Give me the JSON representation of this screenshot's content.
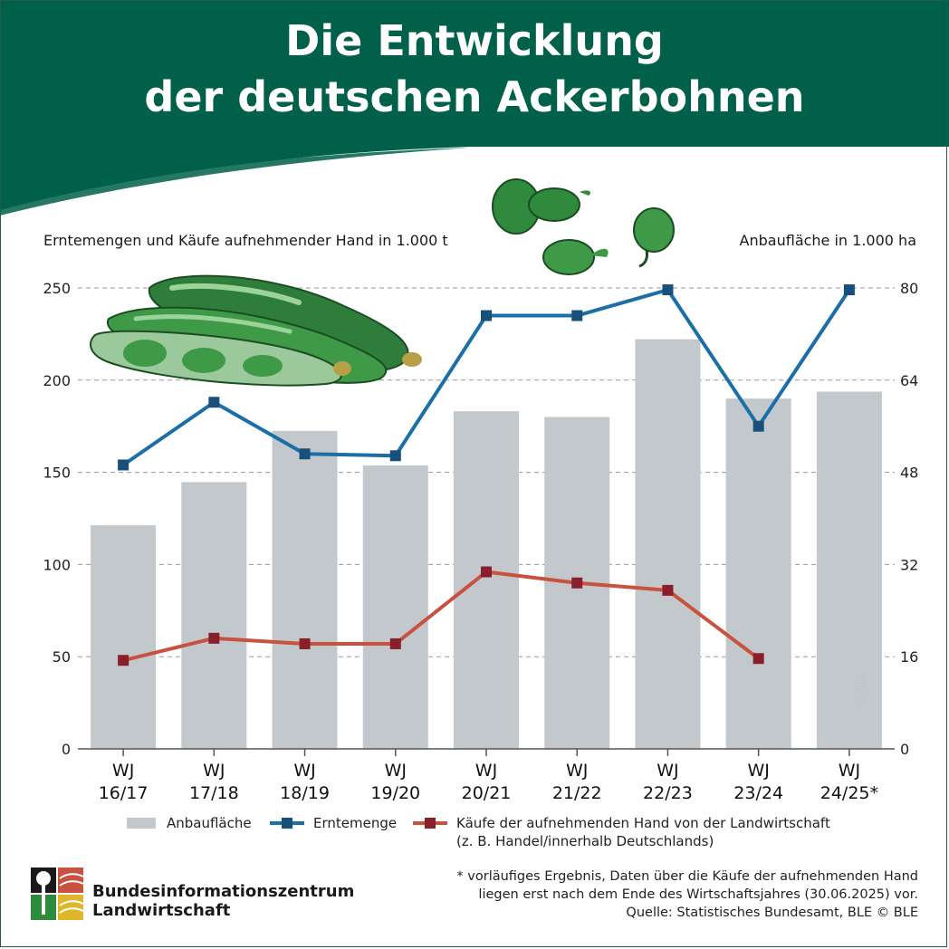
{
  "title": {
    "line1": "Die Entwicklung",
    "line2": "der deutschen Ackerbohnen"
  },
  "colors": {
    "header_green": "#00604a",
    "bar_gray": "#c3c8cc",
    "harvest_blue": "#1b6fa8",
    "purchase_red": "#c8523f",
    "purchase_marker": "#8a1f2c"
  },
  "chart_data": {
    "type": "bar",
    "categories": [
      "WJ 16/17",
      "WJ 17/18",
      "WJ 18/19",
      "WJ 19/20",
      "WJ 20/21",
      "WJ 21/22",
      "WJ 22/23",
      "WJ 23/24",
      "WJ 24/25*"
    ],
    "category_lines": [
      [
        "WJ",
        "16/17"
      ],
      [
        "WJ",
        "17/18"
      ],
      [
        "WJ",
        "18/19"
      ],
      [
        "WJ",
        "19/20"
      ],
      [
        "WJ",
        "20/21"
      ],
      [
        "WJ",
        "21/22"
      ],
      [
        "WJ",
        "22/23"
      ],
      [
        "WJ",
        "23/24"
      ],
      [
        "WJ",
        "24/25*"
      ]
    ],
    "ylabel": "Erntemengen und Käufe aufnehmender Hand in 1.000 t",
    "y2label": "Anbaufläche in 1.000 ha",
    "ylim": [
      0,
      250
    ],
    "y2lim": [
      0,
      80
    ],
    "yticks": [
      "0",
      "50",
      "100",
      "150",
      "200",
      "250"
    ],
    "y2ticks": [
      "0",
      "16",
      "32",
      "48",
      "64",
      "80"
    ],
    "grid": true,
    "series": [
      {
        "name": "Anbaufläche",
        "type": "bar",
        "axis": "right",
        "values": [
          38.8,
          46.3,
          55.2,
          49.2,
          58.6,
          57.6,
          71.1,
          60.8,
          62.0
        ]
      },
      {
        "name": "Erntemenge",
        "type": "line",
        "axis": "left",
        "values": [
          154,
          188,
          160,
          159,
          235,
          235,
          249,
          175,
          249
        ]
      },
      {
        "name": "Käufe der aufnehmenden Hand von der Landwirtschaft",
        "type": "line",
        "axis": "left",
        "values": [
          48,
          60,
          57,
          57,
          96,
          90,
          86,
          49,
          null
        ]
      }
    ]
  },
  "legend": {
    "bar_label": "Anbaufläche",
    "harvest_label": "Erntemenge",
    "purchase_label_1": "Käufe der aufnehmenden Hand von der Landwirtschaft",
    "purchase_label_2": "(z. B. Handel/innerhalb Deutschlands)"
  },
  "footnote": {
    "line1": "* vorläufiges Ergebnis, Daten über die Käufe der aufnehmenden Hand",
    "line2": "liegen erst nach dem Ende des Wirtschaftsjahres (30.06.2025) vor.",
    "line3": "Quelle: Statistisches Bundesamt, BLE © BLE"
  },
  "logo": {
    "line1": "Bundesinformationszentrum",
    "line2": "Landwirtschaft"
  },
  "copyright": "© BLE"
}
